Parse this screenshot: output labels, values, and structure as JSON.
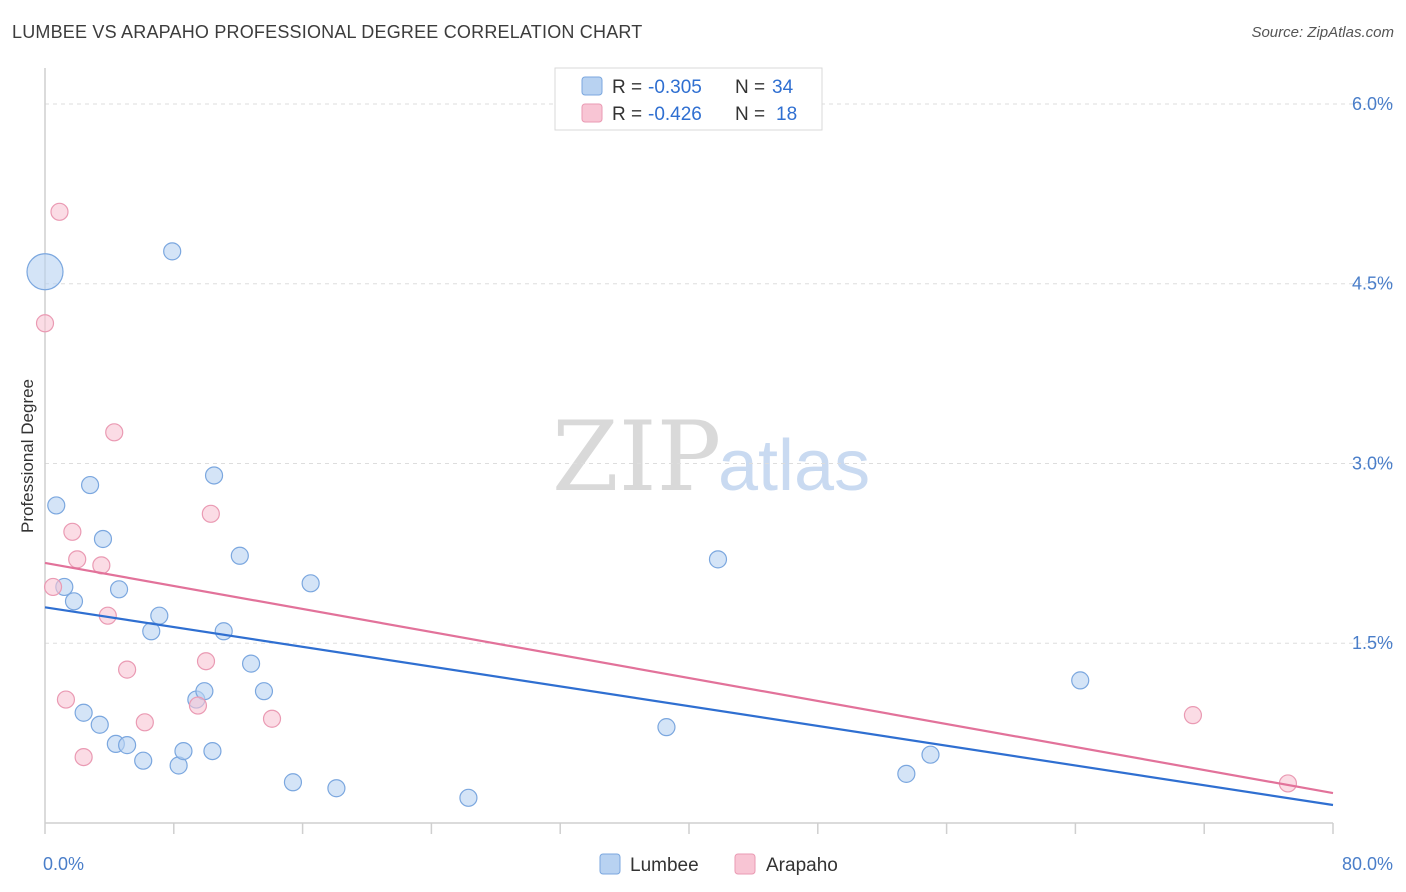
{
  "title": "LUMBEE VS ARAPAHO PROFESSIONAL DEGREE CORRELATION CHART",
  "source": "Source: ZipAtlas.com",
  "watermark": {
    "zip": "ZIP",
    "atlas": "atlas"
  },
  "colors": {
    "lumbee_fill": "#b8d2f1",
    "lumbee_stroke": "#7ba7df",
    "lumbee_line": "#2f6fd1",
    "arapaho_fill": "#f8c5d4",
    "arapaho_stroke": "#ea9ab3",
    "arapaho_line": "#e2729a",
    "grid": "#dddddd",
    "tick_label": "#4a7ec9"
  },
  "legend_top": {
    "rows": [
      {
        "r_label": "R =",
        "r_value": "-0.305",
        "n_label": "N =",
        "n_value": "34"
      },
      {
        "r_label": "R =",
        "r_value": "-0.426",
        "n_label": "N =",
        "n_value": "18"
      }
    ]
  },
  "chart_data": {
    "type": "scatter",
    "title": "LUMBEE VS ARAPAHO PROFESSIONAL DEGREE CORRELATION CHART",
    "xlabel": "",
    "ylabel": "Professional Degree",
    "xlim": [
      0,
      80
    ],
    "ylim": [
      0,
      6.2
    ],
    "x_tick_labels": [
      "0.0%",
      "80.0%"
    ],
    "y_ticks": [
      1.5,
      3.0,
      4.5,
      6.0
    ],
    "y_tick_labels": [
      "1.5%",
      "3.0%",
      "4.5%",
      "6.0%"
    ],
    "grid": true,
    "legend_placement": "top-center and bottom-center",
    "series": [
      {
        "name": "Lumbee",
        "r": -0.305,
        "n": 34,
        "trend": [
          [
            0,
            1.8
          ],
          [
            80,
            0.15
          ]
        ],
        "points": [
          {
            "x": 0.0,
            "y": 4.6,
            "big": true
          },
          {
            "x": 0.7,
            "y": 2.65
          },
          {
            "x": 1.2,
            "y": 1.97
          },
          {
            "x": 1.8,
            "y": 1.85
          },
          {
            "x": 2.4,
            "y": 0.92
          },
          {
            "x": 2.8,
            "y": 2.82
          },
          {
            "x": 3.4,
            "y": 0.82
          },
          {
            "x": 3.6,
            "y": 2.37
          },
          {
            "x": 4.4,
            "y": 0.66
          },
          {
            "x": 4.6,
            "y": 1.95
          },
          {
            "x": 5.1,
            "y": 0.65
          },
          {
            "x": 6.1,
            "y": 0.52
          },
          {
            "x": 6.6,
            "y": 1.6
          },
          {
            "x": 7.1,
            "y": 1.73
          },
          {
            "x": 7.9,
            "y": 4.77
          },
          {
            "x": 8.3,
            "y": 0.48
          },
          {
            "x": 8.6,
            "y": 0.6
          },
          {
            "x": 9.4,
            "y": 1.03
          },
          {
            "x": 9.9,
            "y": 1.1
          },
          {
            "x": 10.4,
            "y": 0.6
          },
          {
            "x": 10.5,
            "y": 2.9
          },
          {
            "x": 11.1,
            "y": 1.6
          },
          {
            "x": 12.1,
            "y": 2.23
          },
          {
            "x": 12.8,
            "y": 1.33
          },
          {
            "x": 13.6,
            "y": 1.1
          },
          {
            "x": 15.4,
            "y": 0.34
          },
          {
            "x": 16.5,
            "y": 2.0
          },
          {
            "x": 18.1,
            "y": 0.29
          },
          {
            "x": 26.3,
            "y": 0.21
          },
          {
            "x": 38.6,
            "y": 0.8
          },
          {
            "x": 41.8,
            "y": 2.2
          },
          {
            "x": 53.5,
            "y": 0.41
          },
          {
            "x": 55.0,
            "y": 0.57
          },
          {
            "x": 64.3,
            "y": 1.19
          }
        ]
      },
      {
        "name": "Arapaho",
        "r": -0.426,
        "n": 18,
        "trend": [
          [
            0,
            2.17
          ],
          [
            80,
            0.25
          ]
        ],
        "points": [
          {
            "x": 0.0,
            "y": 4.17
          },
          {
            "x": 0.5,
            "y": 1.97
          },
          {
            "x": 0.9,
            "y": 5.1
          },
          {
            "x": 1.3,
            "y": 1.03
          },
          {
            "x": 1.7,
            "y": 2.43
          },
          {
            "x": 2.0,
            "y": 2.2
          },
          {
            "x": 2.4,
            "y": 0.55
          },
          {
            "x": 3.5,
            "y": 2.15
          },
          {
            "x": 3.9,
            "y": 1.73
          },
          {
            "x": 4.3,
            "y": 3.26
          },
          {
            "x": 5.1,
            "y": 1.28
          },
          {
            "x": 6.2,
            "y": 0.84
          },
          {
            "x": 9.5,
            "y": 0.98
          },
          {
            "x": 10.0,
            "y": 1.35
          },
          {
            "x": 10.3,
            "y": 2.58
          },
          {
            "x": 14.1,
            "y": 0.87
          },
          {
            "x": 71.3,
            "y": 0.9
          },
          {
            "x": 77.2,
            "y": 0.33
          }
        ]
      }
    ]
  }
}
